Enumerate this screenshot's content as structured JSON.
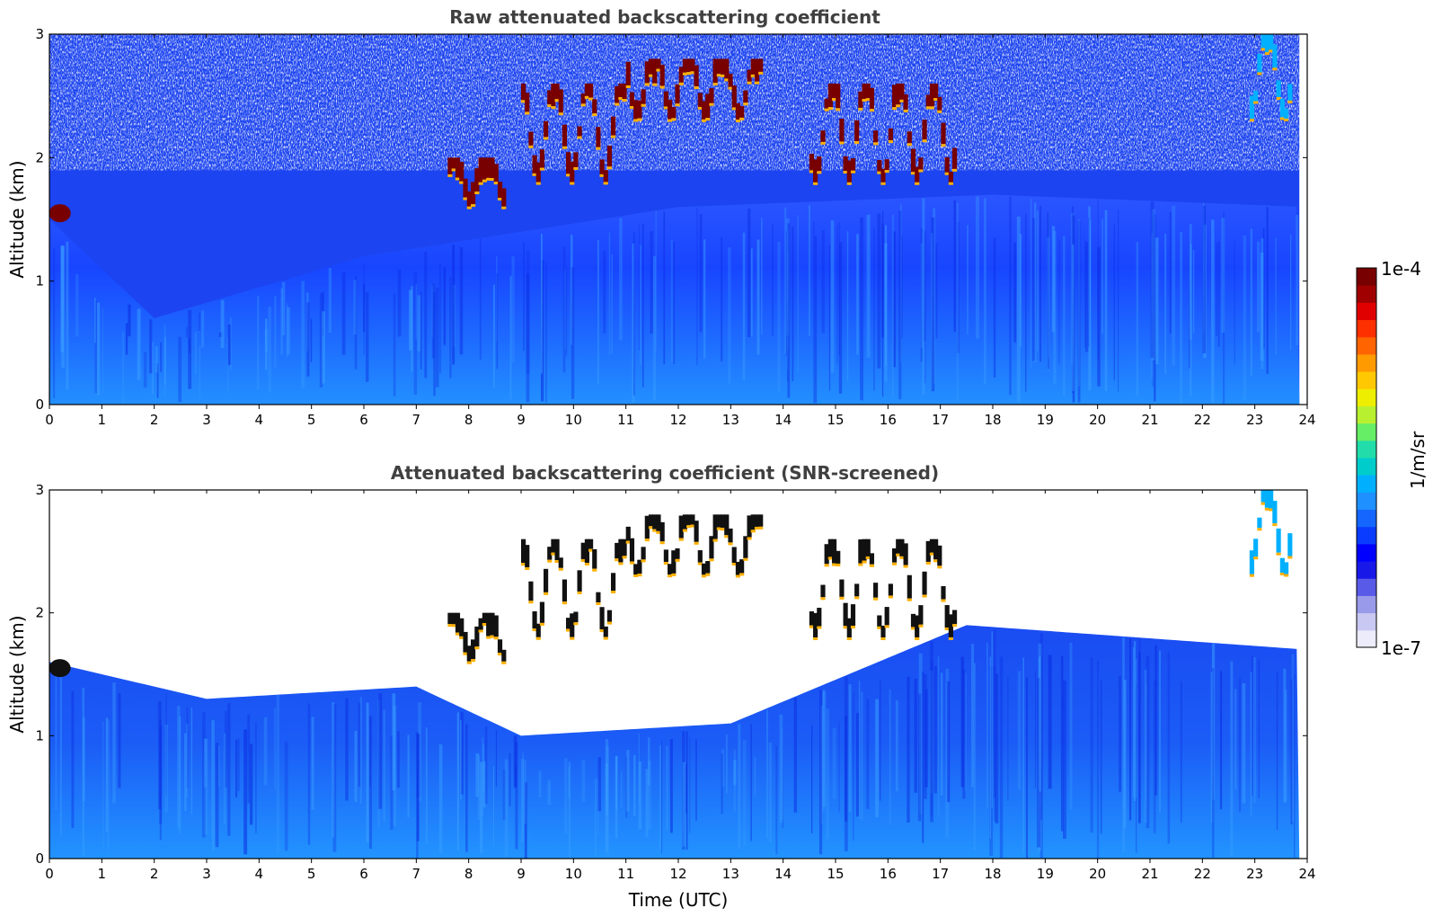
{
  "chart_data": [
    {
      "type": "heatmap",
      "title": "Raw attenuated backscattering coefficient",
      "xlabel": "",
      "ylabel": "Altitude (km)",
      "xlim": [
        0,
        24
      ],
      "ylim": [
        0,
        3
      ],
      "x_ticks": [
        "0",
        "1",
        "2",
        "3",
        "4",
        "5",
        "6",
        "7",
        "8",
        "9",
        "10",
        "11",
        "12",
        "13",
        "14",
        "15",
        "16",
        "17",
        "18",
        "19",
        "20",
        "21",
        "22",
        "23",
        "24"
      ],
      "y_ticks": [
        "0",
        "1",
        "2",
        "3"
      ],
      "colorscale": "log",
      "clim": [
        "1e-7",
        "1e-4"
      ],
      "features": [
        {
          "time": 0.2,
          "altitude_km": 1.55,
          "backscatter": "1e-4"
        },
        {
          "time_range": [
            7.6,
            8.7
          ],
          "altitude_range_km": [
            1.6,
            2.0
          ],
          "backscatter": "1e-4"
        },
        {
          "time_range": [
            9.0,
            11.0
          ],
          "altitude_range_km": [
            1.8,
            2.6
          ],
          "backscatter": "1e-4"
        },
        {
          "time_range": [
            11.0,
            13.6
          ],
          "altitude_range_km": [
            2.3,
            2.8
          ],
          "backscatter": "1e-4"
        },
        {
          "time_range": [
            14.5,
            17.3
          ],
          "altitude_range_km": [
            1.8,
            2.6
          ],
          "backscatter": "1e-4"
        },
        {
          "time_range": [
            22.9,
            23.7
          ],
          "altitude_range_km": [
            2.3,
            3.0
          ],
          "backscatter": "2e-6"
        }
      ],
      "boundary_layer_top_km": [
        {
          "time": 0,
          "altitude_km": 1.5
        },
        {
          "time": 2,
          "altitude_km": 0.7
        },
        {
          "time": 6,
          "altitude_km": 1.2
        },
        {
          "time": 12,
          "altitude_km": 1.6
        },
        {
          "time": 18,
          "altitude_km": 1.7
        },
        {
          "time": 24,
          "altitude_km": 1.6
        }
      ]
    },
    {
      "type": "heatmap",
      "title": "Attenuated backscattering coefficient (SNR-screened)",
      "xlabel": "Time (UTC)",
      "ylabel": "Altitude (km)",
      "xlim": [
        0,
        24
      ],
      "ylim": [
        0,
        3
      ],
      "x_ticks": [
        "0",
        "1",
        "2",
        "3",
        "4",
        "5",
        "6",
        "7",
        "8",
        "9",
        "10",
        "11",
        "12",
        "13",
        "14",
        "15",
        "16",
        "17",
        "18",
        "19",
        "20",
        "21",
        "22",
        "23",
        "24"
      ],
      "y_ticks": [
        "0",
        "1",
        "2",
        "3"
      ],
      "colorscale": "log",
      "clim": [
        "1e-7",
        "1e-4"
      ],
      "features": [
        {
          "time": 0.2,
          "altitude_km": 1.55,
          "backscatter": "1e-4"
        },
        {
          "time_range": [
            7.6,
            8.7
          ],
          "altitude_range_km": [
            1.6,
            2.0
          ],
          "backscatter": "1e-4"
        },
        {
          "time_range": [
            9.0,
            11.0
          ],
          "altitude_range_km": [
            1.8,
            2.6
          ],
          "backscatter": "1e-4"
        },
        {
          "time_range": [
            11.0,
            13.6
          ],
          "altitude_range_km": [
            2.3,
            2.8
          ],
          "backscatter": "1e-4"
        },
        {
          "time_range": [
            14.5,
            17.3
          ],
          "altitude_range_km": [
            1.8,
            2.6
          ],
          "backscatter": "1e-4"
        },
        {
          "time_range": [
            22.9,
            23.7
          ],
          "altitude_range_km": [
            2.3,
            3.0
          ],
          "backscatter": "2e-6"
        }
      ],
      "screened_top_km": [
        {
          "time": 0,
          "altitude_km": 1.6
        },
        {
          "time": 3,
          "altitude_km": 1.3
        },
        {
          "time": 7,
          "altitude_km": 1.4
        },
        {
          "time": 9,
          "altitude_km": 1.0
        },
        {
          "time": 13,
          "altitude_km": 1.1
        },
        {
          "time": 17.5,
          "altitude_km": 1.9
        },
        {
          "time": 24,
          "altitude_km": 1.7
        }
      ]
    }
  ],
  "colorbar": {
    "label": "1/m/sr",
    "max_label": "1e-4",
    "min_label": "1e-7",
    "colors": [
      "#ececfa",
      "#c8c8f2",
      "#9a9aea",
      "#5a5ae8",
      "#1818e8",
      "#0000ff",
      "#0a3cff",
      "#1466ff",
      "#1e90ff",
      "#00b0ff",
      "#00cccc",
      "#22ddaa",
      "#66ee66",
      "#b8f030",
      "#eeee00",
      "#ffc800",
      "#ff9a00",
      "#ff6400",
      "#ff3000",
      "#e00000",
      "#a00000",
      "#780000"
    ]
  }
}
